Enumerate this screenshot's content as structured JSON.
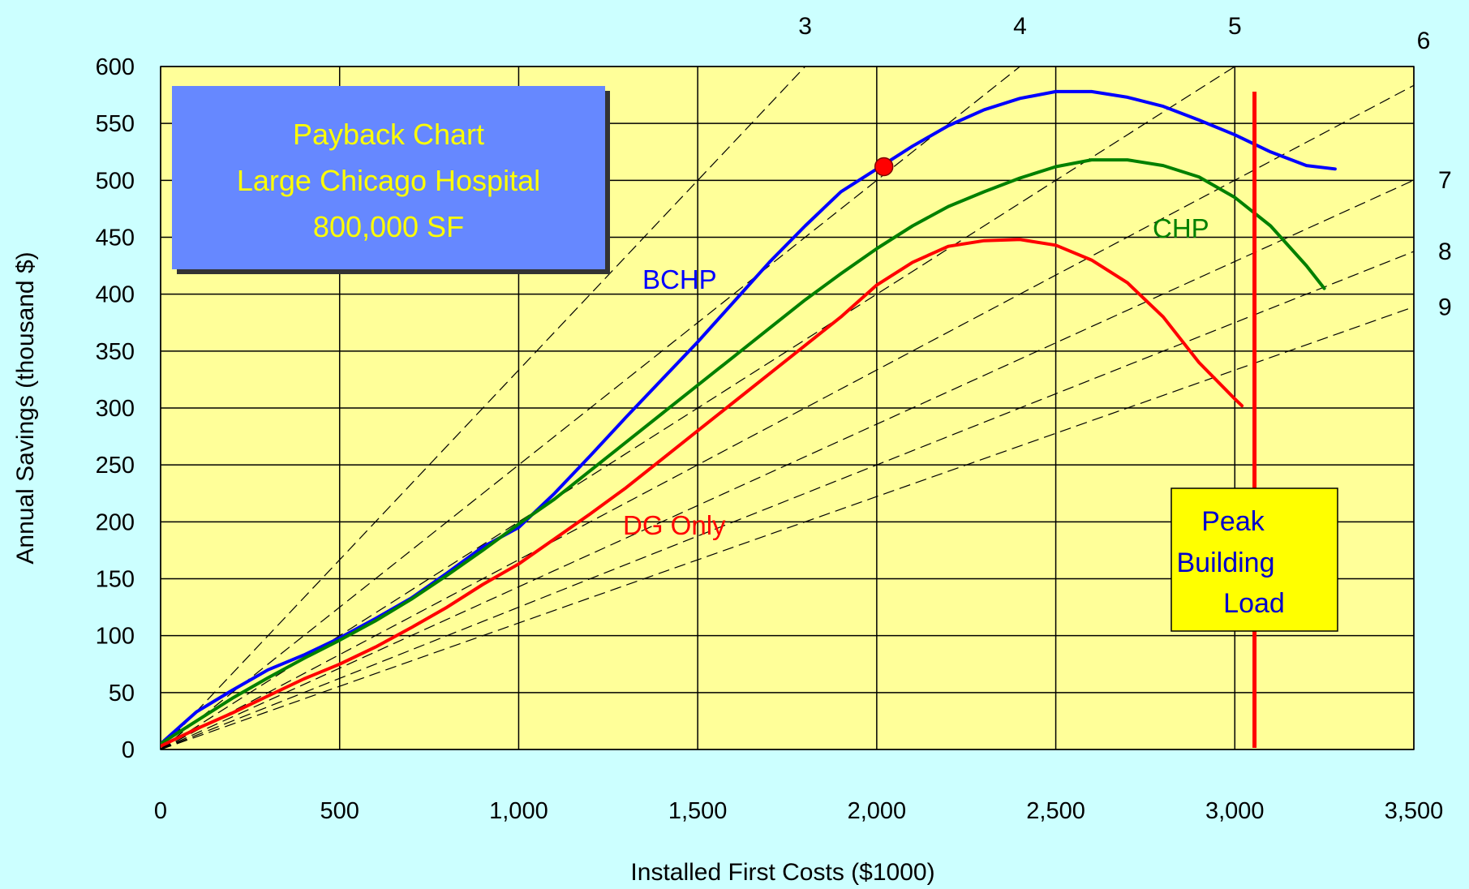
{
  "chart_data": {
    "type": "line",
    "title_lines": [
      "Payback Chart",
      "Large Chicago Hospital",
      "800,000 SF"
    ],
    "xlabel": "Installed First Costs  ($1000)",
    "ylabel": "Annual Savings (thousand $)",
    "xlim": [
      0,
      3500
    ],
    "ylim": [
      0,
      600
    ],
    "x_ticks": [
      0,
      500,
      1000,
      1500,
      2000,
      2500,
      3000,
      3500
    ],
    "x_tick_labels": [
      "0",
      "500",
      "1,000",
      "1,500",
      "2,000",
      "2,500",
      "3,000",
      "3,500"
    ],
    "y_ticks": [
      0,
      50,
      100,
      150,
      200,
      250,
      300,
      350,
      400,
      450,
      500,
      550,
      600
    ],
    "y_tick_labels": [
      "0",
      "50",
      "100",
      "150",
      "200",
      "250",
      "300",
      "350",
      "400",
      "450",
      "500",
      "550",
      "600"
    ],
    "grid": true,
    "series": [
      {
        "name": "BCHP",
        "color": "#0000ff",
        "x": [
          0,
          100,
          200,
          300,
          400,
          500,
          600,
          700,
          800,
          900,
          1000,
          1100,
          1200,
          1300,
          1400,
          1500,
          1600,
          1700,
          1800,
          1900,
          2000,
          2100,
          2200,
          2300,
          2400,
          2500,
          2600,
          2700,
          2800,
          2900,
          3000,
          3100,
          3200,
          3280
        ],
        "y": [
          5,
          33,
          52,
          70,
          83,
          98,
          115,
          133,
          155,
          178,
          195,
          225,
          258,
          292,
          325,
          358,
          393,
          428,
          460,
          490,
          510,
          530,
          548,
          562,
          572,
          578,
          578,
          573,
          565,
          553,
          540,
          525,
          513,
          510
        ]
      },
      {
        "name": "CHP",
        "color": "#008000",
        "x": [
          0,
          100,
          200,
          300,
          400,
          500,
          600,
          700,
          800,
          900,
          1000,
          1100,
          1200,
          1300,
          1400,
          1500,
          1600,
          1700,
          1800,
          1900,
          2000,
          2100,
          2200,
          2300,
          2400,
          2500,
          2600,
          2700,
          2800,
          2900,
          3000,
          3100,
          3200,
          3250
        ],
        "y": [
          5,
          25,
          45,
          63,
          80,
          96,
          113,
          132,
          153,
          175,
          198,
          220,
          245,
          270,
          295,
          320,
          345,
          370,
          395,
          418,
          440,
          460,
          477,
          490,
          502,
          512,
          518,
          518,
          513,
          503,
          485,
          460,
          425,
          405
        ]
      },
      {
        "name": "DG Only",
        "color": "#ff0000",
        "x": [
          0,
          100,
          200,
          300,
          400,
          500,
          600,
          700,
          800,
          900,
          1000,
          1100,
          1200,
          1300,
          1400,
          1500,
          1600,
          1700,
          1800,
          1900,
          2000,
          2100,
          2200,
          2300,
          2400,
          2500,
          2600,
          2700,
          2800,
          2900,
          3000,
          3020
        ],
        "y": [
          3,
          18,
          32,
          47,
          62,
          75,
          90,
          107,
          125,
          145,
          163,
          185,
          207,
          230,
          255,
          280,
          305,
          330,
          355,
          380,
          408,
          428,
          442,
          447,
          448,
          443,
          430,
          410,
          380,
          340,
          308,
          302
        ]
      }
    ],
    "payback_lines": [
      {
        "label": "3",
        "slope": 0.3333
      },
      {
        "label": "4",
        "slope": 0.25
      },
      {
        "label": "5",
        "slope": 0.2
      },
      {
        "label": "6",
        "slope": 0.1667
      },
      {
        "label": "7",
        "slope": 0.1429
      },
      {
        "label": "8",
        "slope": 0.125
      },
      {
        "label": "9",
        "slope": 0.1111
      }
    ],
    "highlight_point": {
      "x": 2020,
      "y": 512,
      "color": "#ff0000"
    },
    "peak_building_load": {
      "x": 3055,
      "color": "#ff0000",
      "label_lines": [
        "Peak",
        "Building",
        "Load"
      ]
    },
    "colors": {
      "background": "#ccffff",
      "plot_area": "#ffff99",
      "title_box": "#6688ff",
      "title_text": "#ffff00",
      "peak_box": "#ffff00",
      "peak_text": "#0000cc"
    }
  }
}
